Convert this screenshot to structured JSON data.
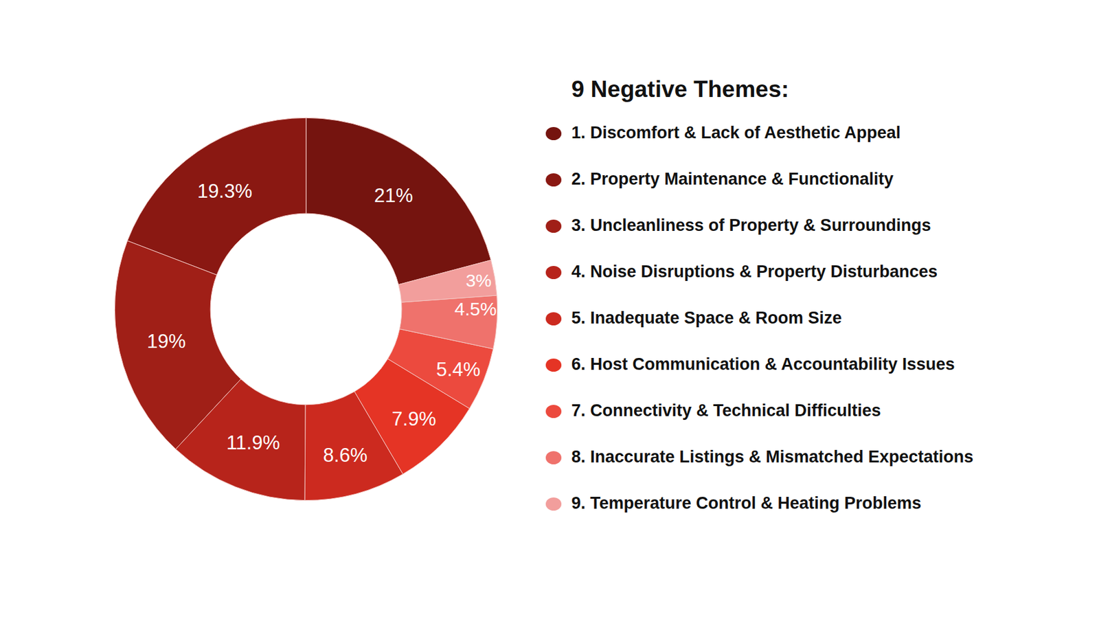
{
  "chart_data": {
    "type": "pie",
    "legend_title": "9 Negative Themes:",
    "categories": [
      "1. Discomfort & Lack of Aesthetic Appeal",
      "2. Property Maintenance & Functionality",
      "3. Uncleanliness of Property & Surroundings",
      "4. Noise Disruptions & Property Disturbances",
      "5. Inadequate Space & Room Size",
      "6. Host Communication & Accountability Issues",
      "7. Connectivity & Technical Difficulties",
      "8. Inaccurate Listings & Mismatched Expectations",
      "9. Temperature Control & Heating Problems"
    ],
    "values": [
      21,
      19.3,
      19,
      11.9,
      8.6,
      7.9,
      5.4,
      4.5,
      3
    ],
    "value_labels": [
      "21%",
      "19.3%",
      "19%",
      "11.9%",
      "8.6%",
      "7.9%",
      "5.4%",
      "4.5%",
      "3%"
    ],
    "colors": [
      "#75140f",
      "#8a1812",
      "#a01f17",
      "#b7241b",
      "#cc2a1f",
      "#e53425",
      "#ec4a3e",
      "#ef726c",
      "#f29e9c"
    ],
    "data_labels": true,
    "legend": "right"
  }
}
